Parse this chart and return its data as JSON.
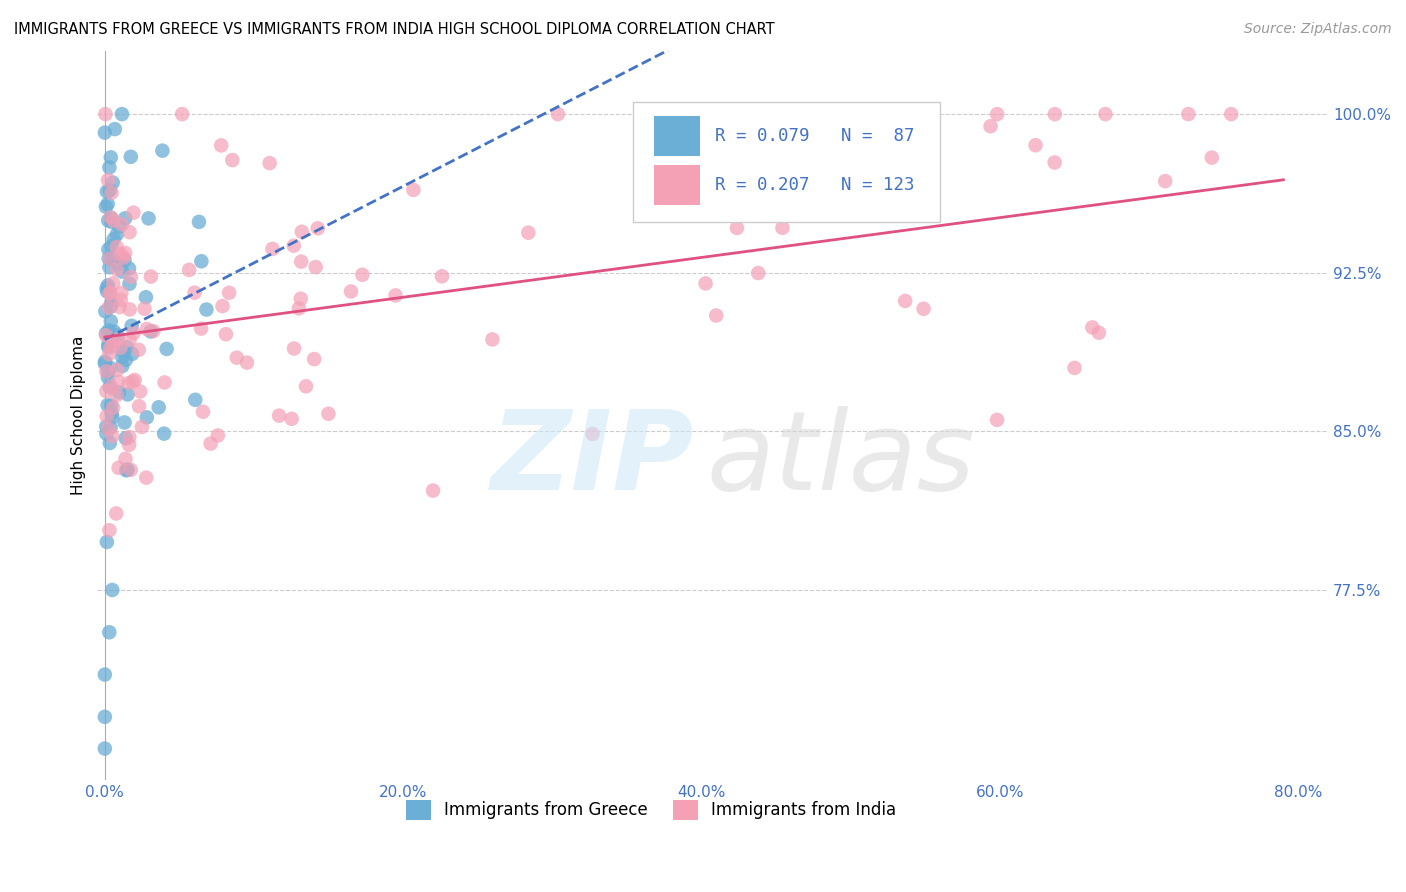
{
  "title": "IMMIGRANTS FROM GREECE VS IMMIGRANTS FROM INDIA HIGH SCHOOL DIPLOMA CORRELATION CHART",
  "source": "Source: ZipAtlas.com",
  "ylabel": "High School Diploma",
  "color_greece": "#6baed6",
  "color_india": "#f4a0b5",
  "trendline_greece_color": "#4472c4",
  "trendline_india_color": "#e05080",
  "tick_color": "#4472c4",
  "grid_color": "#cccccc",
  "legend_text_color": "#4472c4",
  "yticks": [
    0.775,
    0.85,
    0.925,
    1.0
  ],
  "yticklabels": [
    "77.5%",
    "85.0%",
    "92.5%",
    "100.0%"
  ],
  "xticks": [
    0.0,
    0.2,
    0.4,
    0.6,
    0.8
  ],
  "xticklabels": [
    "0.0%",
    "20.0%",
    "40.0%",
    "60.0%",
    "80.0%"
  ],
  "xlim": [
    -0.005,
    0.82
  ],
  "ylim": [
    0.685,
    1.03
  ]
}
